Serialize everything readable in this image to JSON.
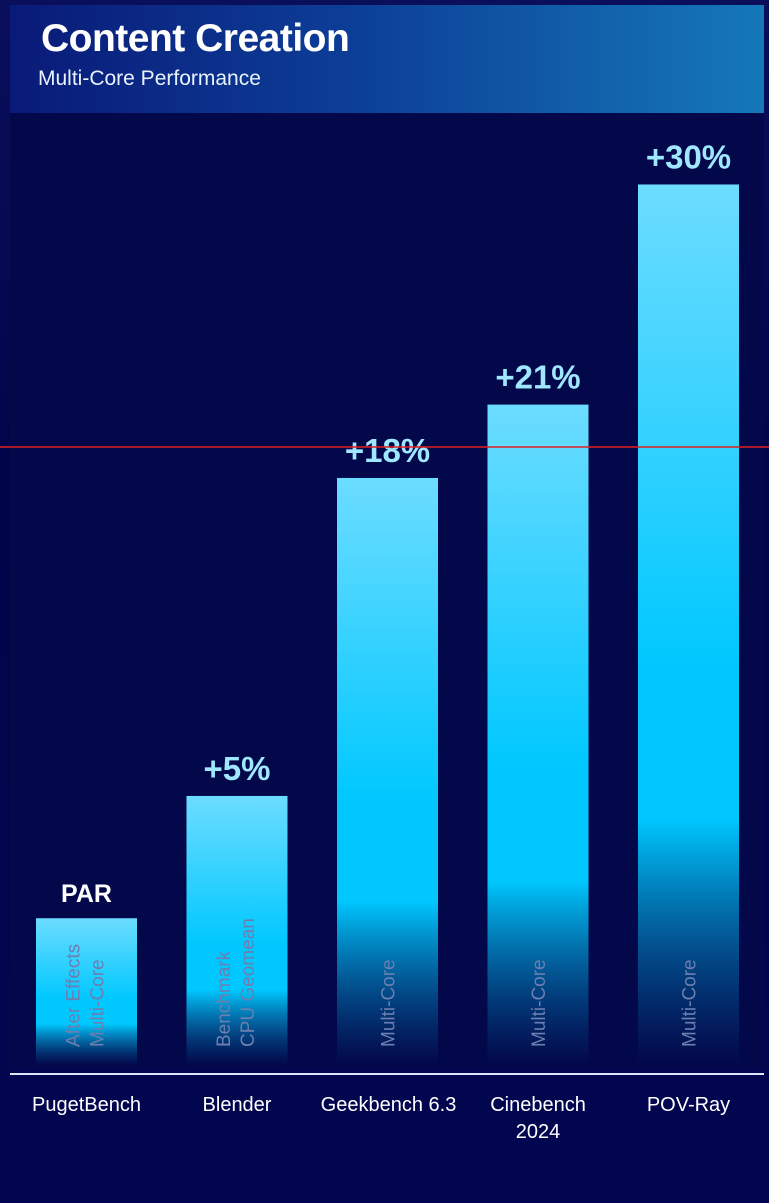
{
  "header": {
    "title": "Content Creation",
    "subtitle": "Multi-Core Performance"
  },
  "colors": {
    "bar_top": "#6cdcff",
    "bar_mid": "#00c8ff",
    "bar_bottom": "#03084a",
    "value_label": "#9fe6ff",
    "par_label": "#ffffff",
    "reference_line": "#e02020",
    "sublabel": "#6b7fb0"
  },
  "chart_data": {
    "type": "bar",
    "categories": [
      "PugetBench",
      "Blender",
      "Geekbench 6.3",
      "Cinebench 2024",
      "POV-Ray"
    ],
    "category_lines": [
      [
        "PugetBench"
      ],
      [
        "Blender"
      ],
      [
        "Geekbench 6.3"
      ],
      [
        "Cinebench",
        "2024"
      ],
      [
        "POV-Ray"
      ]
    ],
    "values": [
      0,
      5,
      18,
      21,
      30
    ],
    "value_labels": [
      "PAR",
      "+5%",
      "+18%",
      "+21%",
      "+30%"
    ],
    "bar_sublabels": [
      [
        "After Effects",
        "Multi-Core"
      ],
      [
        "Benchmark",
        "CPU Geomean"
      ],
      [
        "Multi-Core"
      ],
      [
        "Multi-Core"
      ],
      [
        "Multi-Core"
      ]
    ],
    "ylim": [
      -6,
      31
    ],
    "legend": "none",
    "grid": false
  }
}
